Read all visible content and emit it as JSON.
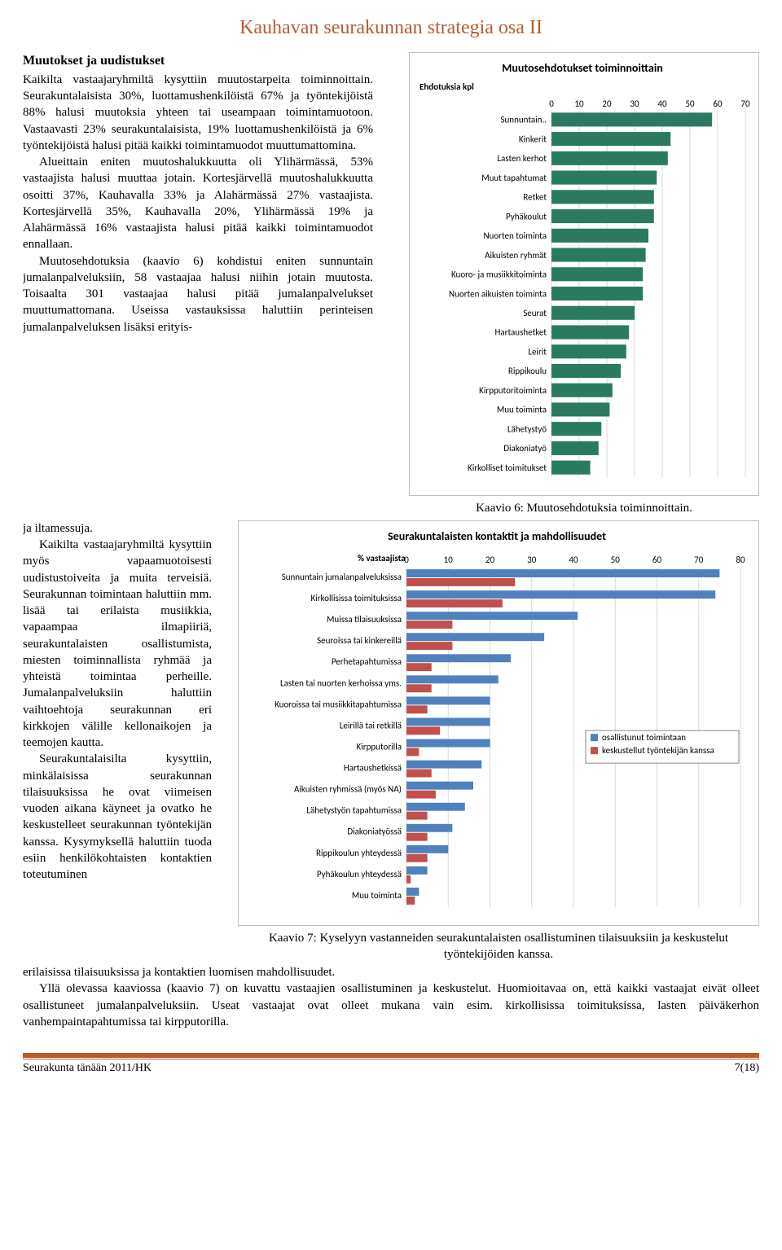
{
  "header": {
    "title": "Kauhavan seurakunnan strategia osa II"
  },
  "section": {
    "heading": "Muutokset ja uudistukset",
    "p1": "Kaikilta vastaajaryhmiltä kysyttiin muutostarpeita toiminnoittain. Seurakuntalaisista 30%, luottamushenkilöistä 67% ja työntekijöistä 88% halusi muutoksia yhteen tai useampaan toimintamuotoon. Vastaavasti 23% seurakuntalaisista, 19% luottamushenkilöistä ja 6% työntekijöistä halusi pitää kaikki toimintamuodot muuttumattomina.",
    "p2": "Alueittain eniten muutoshalukkuutta oli Ylihärmässä, 53% vastaajista halusi muuttaa jotain. Kortesjärvellä muutoshalukkuutta osoitti 37%, Kauhavalla 33% ja Alahärmässä 27% vastaajista. Kortesjärvellä 35%, Kauhavalla 20%, Ylihärmässä 19% ja Alahärmässä 16% vastaajista halusi pitää kaikki toimintamuodot ennallaan.",
    "p3": "Muutosehdotuksia (kaavio 6) kohdistui eniten sunnuntain jumalanpalveluksiin, 58 vastaajaa halusi niihin jotain muutosta. Toisaalta 301 vastaajaa halusi pitää jumalanpalvelukset muuttumattomana. Useissa vastauksissa haluttiin perinteisen jumalanpalveluksen lisäksi erityis-",
    "p4a": "ja iltamessuja.",
    "p4": "Kaikilta vastaajaryhmiltä kysyttiin myös vapaamuotoisesti uudistustoiveita ja muita terveisiä. Seurakunnan toimintaan haluttiin mm. lisää tai erilaista musiikkia, vapaampaa ilmapiiriä, seurakuntalaisten osallistumista, miesten toiminnallista ryhmää ja yhteistä toimintaa perheille. Jumalanpalveluksiin haluttiin vaihtoehtoja seurakunnan eri kirkkojen välille kellonaikojen ja teemojen kautta.",
    "p5": "Seurakuntalaisilta kysyttiin, minkälaisissa seurakunnan tilaisuuksissa he ovat viimeisen vuoden aikana käyneet ja ovatko he keskustelleet seurakunnan työntekijän kanssa. Kysymyksellä haluttiin tuoda esiin henkilökohtaisten kontaktien toteutuminen",
    "p6": "erilaisissa tilaisuuksissa ja kontaktien luomisen mahdollisuudet.",
    "p7": "Yllä olevassa kaaviossa (kaavio 7) on kuvattu vastaajien osallistuminen ja keskustelut. Huomioitavaa on, että kaikki vastaajat eivät olleet osallistuneet jumalanpalveluksiin. Useat vastaajat ovat olleet mukana vain esim. kirkollisissa toimituksissa, lasten päiväkerhon vanhempaintapahtumissa tai kirpputorilla."
  },
  "chart1": {
    "type": "bar-horizontal",
    "title": "Muutosehdotukset toiminnoittain",
    "x_label": "Ehdotuksia kpl",
    "xlim": [
      0,
      70
    ],
    "xtick_step": 10,
    "bar_color": "#2a7a62",
    "bg": "#ffffff",
    "grid": "#d9d9d9",
    "categories": [
      "Sunnuntain..",
      "Kinkerit",
      "Lasten kerhot",
      "Muut tapahtumat",
      "Retket",
      "Pyhäkoulut",
      "Nuorten toiminta",
      "Aikuisten ryhmät",
      "Kuoro- ja musiikkitoiminta",
      "Nuorten aikuisten toiminta",
      "Seurat",
      "Hartaushetket",
      "Leirit",
      "Rippikoulu",
      "Kirpputoritoiminta",
      "Muu toiminta",
      "Lähetystyö",
      "Diakoniatyö",
      "Kirkolliset toimitukset"
    ],
    "values": [
      58,
      43,
      42,
      38,
      37,
      37,
      35,
      34,
      33,
      33,
      30,
      28,
      27,
      25,
      22,
      21,
      18,
      17,
      14
    ],
    "caption": "Kaavio 6: Muutosehdotuksia toiminnoittain."
  },
  "chart2": {
    "type": "grouped-bar-horizontal",
    "title": "Seurakuntalaisten kontaktit ja mahdollisuudet",
    "x_label": "% vastaajista",
    "xlim": [
      0,
      80
    ],
    "xtick_step": 10,
    "series": [
      {
        "name": "osallistunut toimintaan",
        "color": "#4f81bd"
      },
      {
        "name": "keskustellut työntekijän kanssa",
        "color": "#c0504d"
      }
    ],
    "bg": "#ffffff",
    "grid": "#d9d9d9",
    "categories": [
      "Sunnuntain jumalanpalveluksissa",
      "Kirkollisissa toimituksissa",
      "Muissa tilaisuuksissa",
      "Seuroissa tai kinkereillä",
      "Perhetapahtumissa",
      "Lasten tai nuorten kerhoissa yms.",
      "Kuoroissa tai musiikkitapahtumissa",
      "Leirillä tai retkillä",
      "Kirpputorilla",
      "Hartaushetkissä",
      "Aikuisten ryhmissä (myös NA)",
      "Lähetystyön tapahtumissa",
      "Diakoniatyössä",
      "Rippikoulun yhteydessä",
      "Pyhäkoulun yhteydessä",
      "Muu toiminta"
    ],
    "values_a": [
      75,
      74,
      41,
      33,
      25,
      22,
      20,
      20,
      20,
      18,
      16,
      14,
      11,
      10,
      5,
      3
    ],
    "values_b": [
      26,
      23,
      11,
      11,
      6,
      6,
      5,
      8,
      3,
      6,
      7,
      5,
      5,
      5,
      1,
      2
    ],
    "caption": "Kaavio 7: Kyselyyn vastanneiden seurakuntalaisten osallistuminen tilaisuuksiin ja keskustelut työntekijöiden kanssa."
  },
  "footer": {
    "left": "Seurakunta tänään 2011/HK",
    "right": "7(18)"
  }
}
